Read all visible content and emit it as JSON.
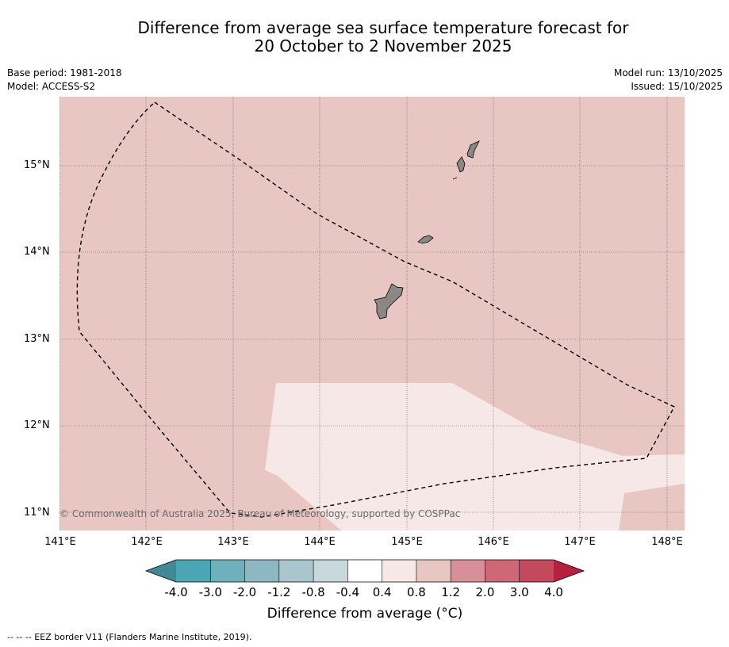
{
  "title": {
    "line1": "Difference from average sea surface temperature forecast for",
    "line2": "20 October to 2 November 2025"
  },
  "meta": {
    "base_period": "Base period: 1981-2018",
    "model": "Model: ACCESS-S2",
    "model_run": "Model run: 13/10/2025",
    "issued": "Issued: 15/10/2025"
  },
  "map": {
    "lat_labels": [
      "15°N",
      "14°N",
      "13°N",
      "12°N",
      "11°N"
    ],
    "lon_labels": [
      "141°E",
      "142°E",
      "143°E",
      "144°E",
      "145°E",
      "146°E",
      "147°E",
      "148°E"
    ],
    "copyright": "© Commonwealth of Australia 2025, Bureau of Meteorology, supported by COSPPac",
    "background_color": "#e8c6c2",
    "anomaly_patch_color": "#f5e8e7",
    "land_color": "#8c8786",
    "eez_line_color": "#000000",
    "grid_color": "#555555",
    "regions": [
      {
        "name": "warm-anomaly-0.8-1.2",
        "label": "0.8 to 1.2"
      },
      {
        "name": "warm-anomaly-0.4-0.8",
        "label": "0.4 to 0.8"
      }
    ],
    "islands": [
      "guam-island",
      "rota-island",
      "tinian-island",
      "saipan-island"
    ]
  },
  "colorbar": {
    "ticks": [
      "-4.0",
      "-3.0",
      "-2.0",
      "-1.2",
      "-0.8",
      "-0.4",
      "0.4",
      "0.8",
      "1.2",
      "2.0",
      "3.0",
      "4.0"
    ],
    "colors": [
      "#418a95",
      "#4aa6b5",
      "#6fb0bd",
      "#8db7c3",
      "#a8c6cb",
      "#c8d9dc",
      "#ffffff",
      "#f5e8e7",
      "#e8c6c2",
      "#d98f97",
      "#cf6876",
      "#c24a5c",
      "#b5203f"
    ],
    "label": "Difference from average (°C)"
  },
  "footer": {
    "eez_legend": "--  --  -- EEZ border V11 (Flanders Marine Institute, 2019)."
  }
}
